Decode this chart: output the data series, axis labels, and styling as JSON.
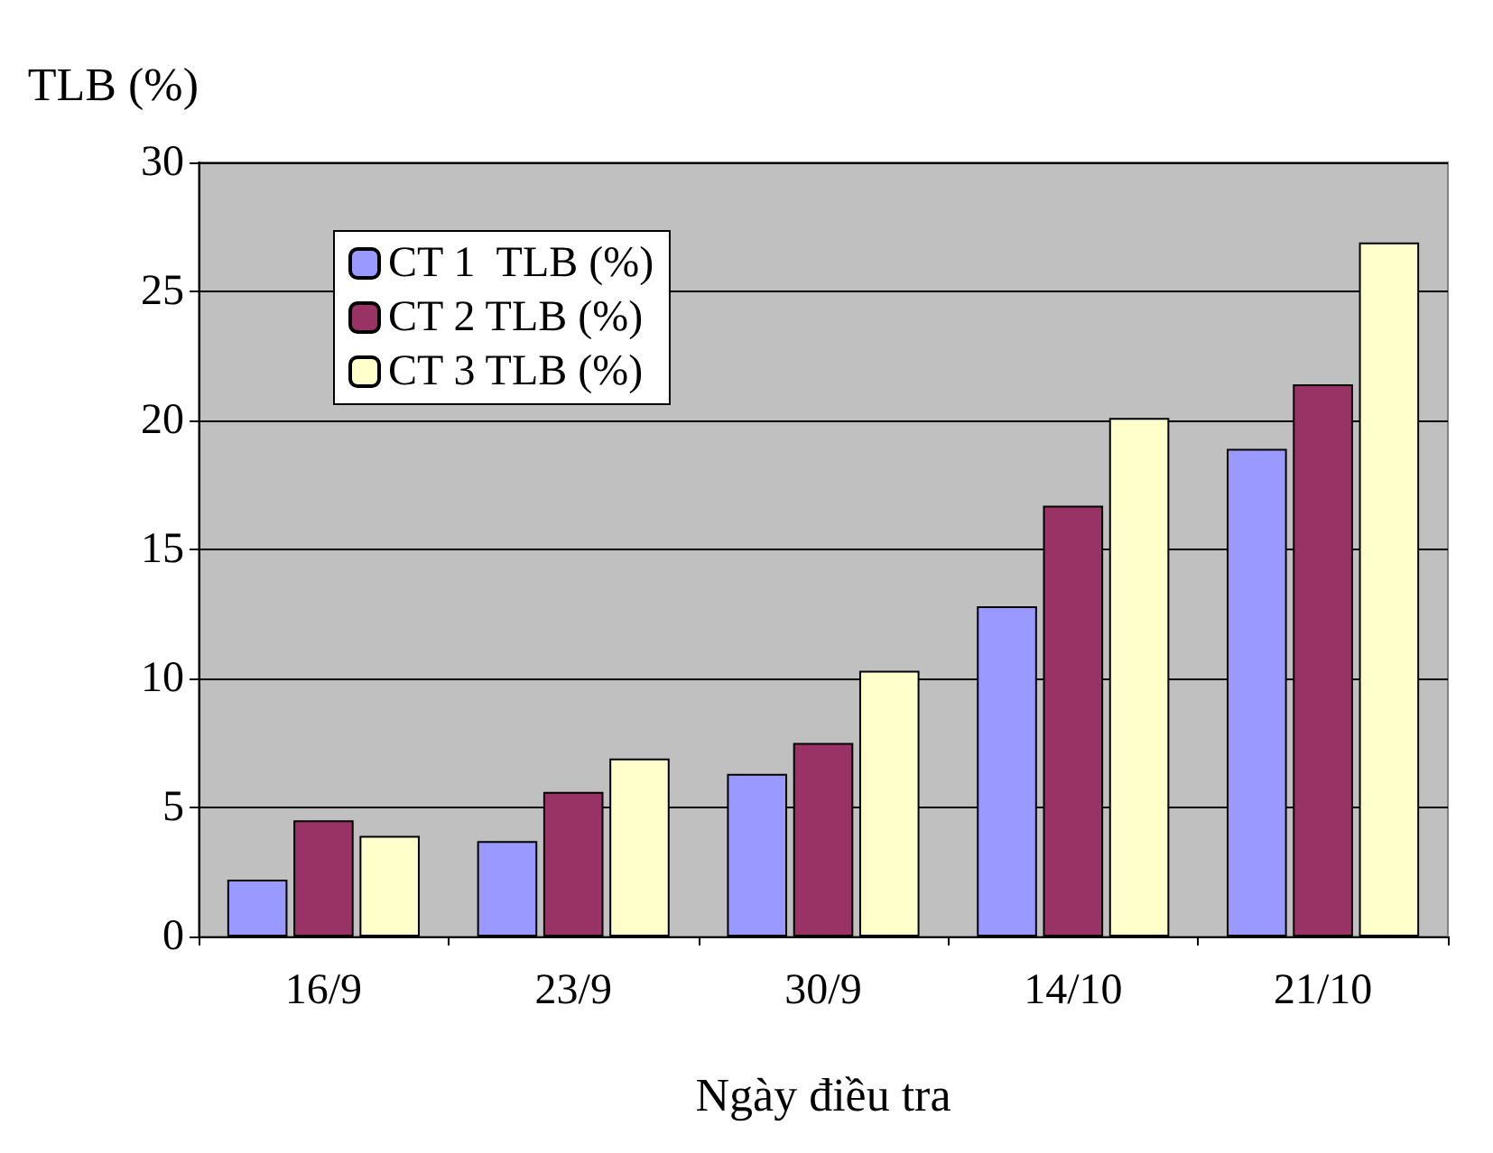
{
  "chart_data": {
    "type": "bar",
    "ylabel": "TLB (%)",
    "xlabel": "Ngày điều tra",
    "categories": [
      "16/9",
      "23/9",
      "30/9",
      "14/10",
      "21/10"
    ],
    "series": [
      {
        "name": "CT 1  TLB (%)",
        "color": "#9999ff",
        "values": [
          2.2,
          3.7,
          6.3,
          12.8,
          18.9
        ]
      },
      {
        "name": "CT 2 TLB (%)",
        "color": "#993366",
        "values": [
          4.5,
          5.6,
          7.5,
          16.7,
          21.4
        ]
      },
      {
        "name": "CT 3 TLB (%)",
        "color": "#ffffcc",
        "values": [
          3.9,
          6.9,
          10.3,
          20.1,
          26.9
        ]
      }
    ],
    "ylim": [
      0,
      30
    ],
    "yticks": [
      0,
      5,
      10,
      15,
      20,
      25,
      30
    ],
    "grid": "y",
    "legend": "top left"
  }
}
